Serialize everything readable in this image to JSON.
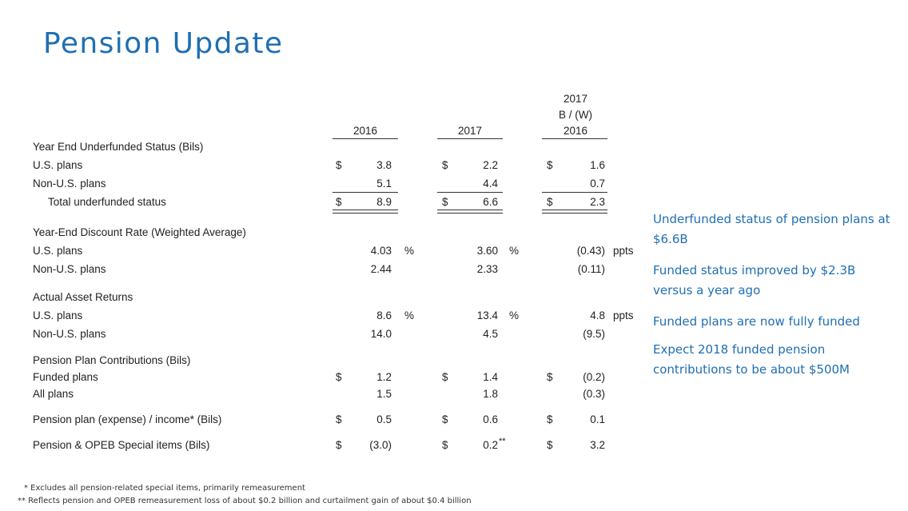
{
  "title": "Pension Update",
  "headers": {
    "col2016": "2016",
    "col2017": "2017",
    "colbw_line1": "2017",
    "colbw_line2": "B / (W)",
    "colbw_line3": "2016"
  },
  "rows": [
    {
      "id": "sec-underfunded",
      "label": "Year End Underfunded Status (Bils)",
      "type": "section"
    },
    {
      "id": "us-underfunded",
      "label": "U.S. plans",
      "d1": "$",
      "v1": "3.8",
      "d2": "$",
      "v2": "2.2",
      "d3": "$",
      "v3": "1.6"
    },
    {
      "id": "nonus-underfunded",
      "label": "Non-U.S. plans",
      "v1": "5.1",
      "v2": "4.4",
      "v3": "0.7"
    },
    {
      "id": "total-underfunded",
      "label": "Total underfunded status",
      "d1": "$",
      "v1": "8.9",
      "d2": "$",
      "v2": "6.6",
      "d3": "$",
      "v3": "2.3"
    },
    {
      "id": "sec-discount",
      "label": "Year-End Discount Rate (Weighted Average)",
      "type": "section"
    },
    {
      "id": "us-discount",
      "label": "U.S. plans",
      "v1": "4.03",
      "u1": "%",
      "v2": "3.60",
      "u2": "%",
      "v3": "(0.43)",
      "u3": "ppts"
    },
    {
      "id": "nonus-discount",
      "label": "Non-U.S. plans",
      "v1": "2.44",
      "v2": "2.33",
      "v3": "(0.11)"
    },
    {
      "id": "sec-returns",
      "label": "Actual Asset Returns",
      "type": "section"
    },
    {
      "id": "us-returns",
      "label": "U.S. plans",
      "v1": "8.6",
      "u1": "%",
      "v2": "13.4",
      "u2": "%",
      "v3": "4.8",
      "u3": "ppts"
    },
    {
      "id": "nonus-returns",
      "label": "Non-U.S. plans",
      "v1": "14.0",
      "v2": "4.5",
      "v3": "(9.5)"
    },
    {
      "id": "sec-contrib",
      "label": "Pension Plan Contributions (Bils)",
      "type": "section"
    },
    {
      "id": "funded-contrib",
      "label": "Funded plans",
      "d1": "$",
      "v1": "1.2",
      "d2": "$",
      "v2": "1.4",
      "d3": "$",
      "v3": "(0.2)"
    },
    {
      "id": "all-contrib",
      "label": "All plans",
      "v1": "1.5",
      "v2": "1.8",
      "v3": "(0.3)"
    },
    {
      "id": "expense-income",
      "label": "Pension plan (expense) / income* (Bils)",
      "d1": "$",
      "v1": "0.5",
      "d2": "$",
      "v2": "0.6",
      "d3": "$",
      "v3": "0.1"
    },
    {
      "id": "opeb-special",
      "label": "Pension & OPEB Special items (Bils)",
      "d1": "$",
      "v1": "(3.0)",
      "d2": "$",
      "v2": "0.2",
      "u2": "**",
      "d3": "$",
      "v3": "3.2"
    }
  ],
  "sidebar": [
    "Underfunded status of pension plans at $6.6B",
    "Funded status improved by $2.3B versus a year ago",
    "Funded plans are now fully funded",
    "Expect 2018 funded pension contributions to be about $500M"
  ],
  "footnotes": [
    "*  Excludes all pension-related special items, primarily remeasurement",
    "**  Reflects pension and OPEB remeasurement loss of about $0.2 billion and curtailment gain of about $0.4 billion"
  ]
}
